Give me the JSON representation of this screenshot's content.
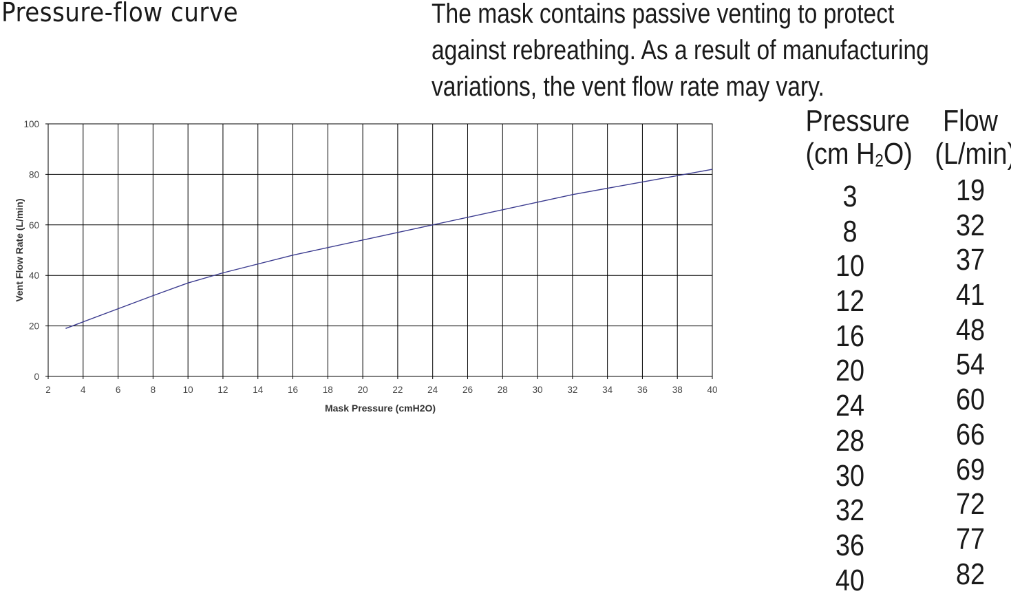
{
  "page": {
    "heading": "Pressure-flow curve",
    "description_lines": [
      "The mask contains passive venting to protect",
      "against rebreathing. As a result of manufacturing",
      "variations, the vent flow rate may vary."
    ]
  },
  "table": {
    "pressure_header_1": "Pressure",
    "pressure_header_2_pre": "(cm H",
    "pressure_header_2_sub": "2",
    "pressure_header_2_post": "O)",
    "flow_header_1": "Flow",
    "flow_header_2": "(L/min)",
    "pressure": [
      "3",
      "8",
      "10",
      "12",
      "16",
      "20",
      "24",
      "28",
      "30",
      "32",
      "36",
      "40"
    ],
    "flow": [
      "19",
      "32",
      "37",
      "41",
      "48",
      "54",
      "60",
      "66",
      "69",
      "72",
      "77",
      "82"
    ]
  },
  "chart_data": {
    "type": "line",
    "title": "",
    "xlabel": "Mask Pressure (cmH2O)",
    "ylabel": "Vent Flow Rate (L/min)",
    "xlim": [
      2,
      40
    ],
    "ylim": [
      0,
      100
    ],
    "x_ticks": [
      "2",
      "4",
      "6",
      "8",
      "10",
      "12",
      "14",
      "16",
      "18",
      "20",
      "22",
      "24",
      "26",
      "28",
      "30",
      "32",
      "34",
      "36",
      "38",
      "40"
    ],
    "y_ticks": [
      "0",
      "20",
      "40",
      "60",
      "80",
      "100"
    ],
    "grid": true,
    "legend": "none",
    "line_color": "#3b3b8f",
    "series": [
      {
        "x": [
          3,
          8,
          10,
          12,
          16,
          20,
          24,
          28,
          30,
          32,
          36,
          40
        ],
        "y": [
          19,
          32,
          37,
          41,
          48,
          54,
          60,
          66,
          69,
          72,
          77,
          82
        ]
      }
    ]
  }
}
